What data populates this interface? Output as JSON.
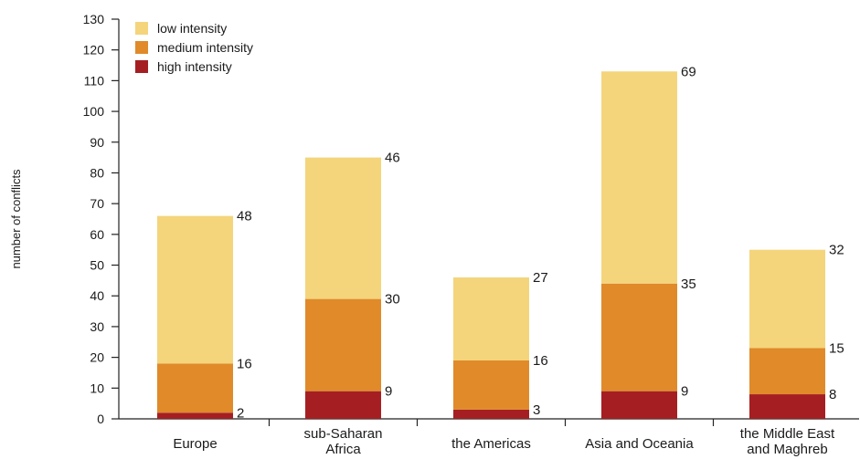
{
  "chart_data": {
    "type": "bar",
    "stacked": true,
    "ylabel": "number of conflicts",
    "ylim": [
      0,
      130
    ],
    "yticks": [
      0,
      10,
      20,
      30,
      40,
      50,
      60,
      70,
      80,
      90,
      100,
      110,
      120,
      130
    ],
    "grid": false,
    "legend_position": "top-left",
    "categories": [
      [
        "Europe"
      ],
      [
        "sub-Saharan",
        "Africa"
      ],
      [
        "the Americas"
      ],
      [
        "Asia and Oceania"
      ],
      [
        "the Middle East",
        "and Maghreb"
      ]
    ],
    "series": [
      {
        "name": "high intensity",
        "color": "#a51f22",
        "values": [
          2,
          9,
          3,
          9,
          8
        ]
      },
      {
        "name": "medium intensity",
        "color": "#e08a2a",
        "values": [
          16,
          30,
          16,
          35,
          15
        ]
      },
      {
        "name": "low intensity",
        "color": "#f4d57c",
        "values": [
          48,
          46,
          27,
          69,
          32
        ]
      }
    ],
    "legend_order": [
      "low intensity",
      "medium intensity",
      "high intensity"
    ]
  }
}
